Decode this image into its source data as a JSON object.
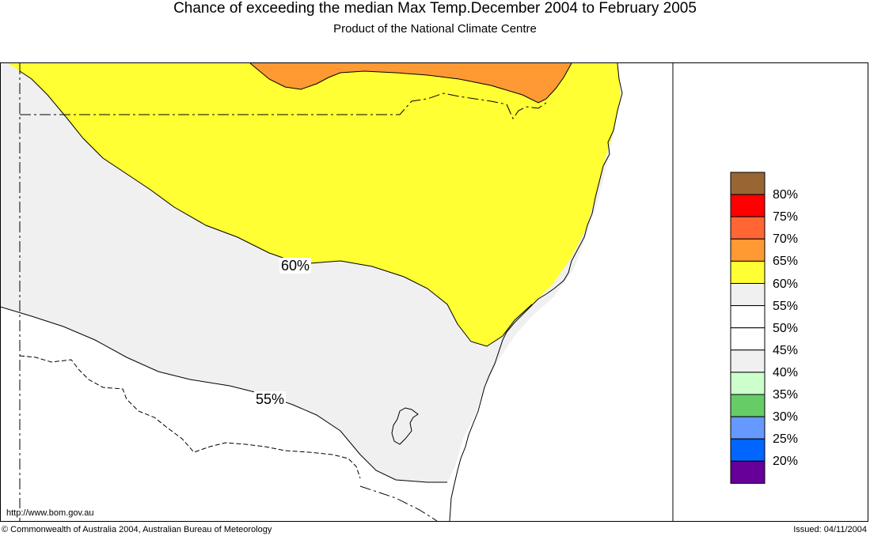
{
  "header": {
    "title": "Chance of exceeding the median Max Temp.December 2004 to February 2005",
    "subtitle": "Product of the National Climate Centre"
  },
  "map": {
    "contour_labels": {
      "sixty": "60%",
      "fiftyfive": "55%"
    },
    "region_colors": {
      "band_55_60": "#f0f0f0",
      "band_60_65": "#ffff33",
      "band_65_70": "#ff9933"
    }
  },
  "legend": {
    "items": [
      {
        "label": "80%",
        "color": "#996633"
      },
      {
        "label": "75%",
        "color": "#ff0000"
      },
      {
        "label": "70%",
        "color": "#ff6633"
      },
      {
        "label": "65%",
        "color": "#ff9933"
      },
      {
        "label": "60%",
        "color": "#ffff33"
      },
      {
        "label": "55%",
        "color": "#f0f0f0"
      },
      {
        "label": "50%",
        "color": "#ffffff"
      },
      {
        "label": "45%",
        "color": "#ffffff"
      },
      {
        "label": "40%",
        "color": "#f0f0f0"
      },
      {
        "label": "35%",
        "color": "#ccffcc"
      },
      {
        "label": "30%",
        "color": "#66cc66"
      },
      {
        "label": "25%",
        "color": "#6699ff"
      },
      {
        "label": "20%",
        "color": "#0066ff"
      },
      {
        "label": "",
        "color": "#660099"
      }
    ]
  },
  "footer": {
    "url": "http://www.bom.gov.au",
    "copyright": "© Commonwealth of Australia 2004, Australian Bureau of Meteorology",
    "issued": "Issued: 04/11/2004"
  }
}
